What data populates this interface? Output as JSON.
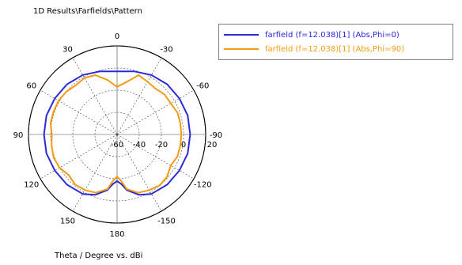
{
  "chart_data": {
    "type": "polar-line",
    "title": "1D Results\\Farfields\\Pattern",
    "xlabel": "Theta / Degree vs. dBi",
    "angle_tick_labels": [
      "0",
      "30",
      "60",
      "90",
      "120",
      "150",
      "180",
      "-150",
      "-120",
      "-90",
      "-60",
      "-30"
    ],
    "radial_tick_labels": [
      "-60",
      "-40",
      "-20",
      "0",
      "20"
    ],
    "radial_range_dbi": [
      -60,
      20
    ],
    "grid": true,
    "legend_position": "top-right",
    "series": [
      {
        "name": "farfield (f=12.038)[1] (Abs,Phi=0)",
        "color": "#2a2ad8",
        "angle_deg": [
          0,
          15,
          30,
          45,
          60,
          75,
          90,
          105,
          120,
          135,
          150,
          160,
          170,
          175,
          180,
          185,
          190,
          200,
          210,
          225,
          240,
          255,
          270,
          285,
          300,
          315,
          330,
          345
        ],
        "dbi": [
          -3,
          -1,
          2,
          4,
          5,
          6,
          6,
          6,
          5,
          4,
          2,
          -2,
          -9,
          -15,
          -18,
          -15,
          -9,
          -2,
          2,
          4,
          5,
          6,
          6,
          6,
          5,
          4,
          2,
          -1
        ]
      },
      {
        "name": "farfield (f=12.038)[1] (Abs,Phi=90)",
        "color": "#f39c12",
        "angle_deg": [
          0,
          10,
          20,
          30,
          40,
          50,
          60,
          70,
          80,
          90,
          100,
          110,
          120,
          130,
          140,
          150,
          160,
          170,
          175,
          180,
          185,
          190,
          200,
          210,
          220,
          230,
          240,
          250,
          260,
          270,
          280,
          290,
          300,
          310,
          315,
          320,
          330,
          340,
          350
        ],
        "dbi": [
          -17,
          -10,
          -3,
          -1,
          -2,
          0,
          1,
          1,
          1,
          -1,
          0,
          1,
          0,
          -3,
          -1,
          -2,
          -4,
          -10,
          -18,
          -22,
          -18,
          -10,
          -4,
          -2,
          0,
          -1,
          -4,
          -2,
          -2,
          -2,
          -2,
          -2,
          -4,
          -4,
          -5,
          -6,
          -5,
          -3,
          -12
        ]
      }
    ]
  }
}
